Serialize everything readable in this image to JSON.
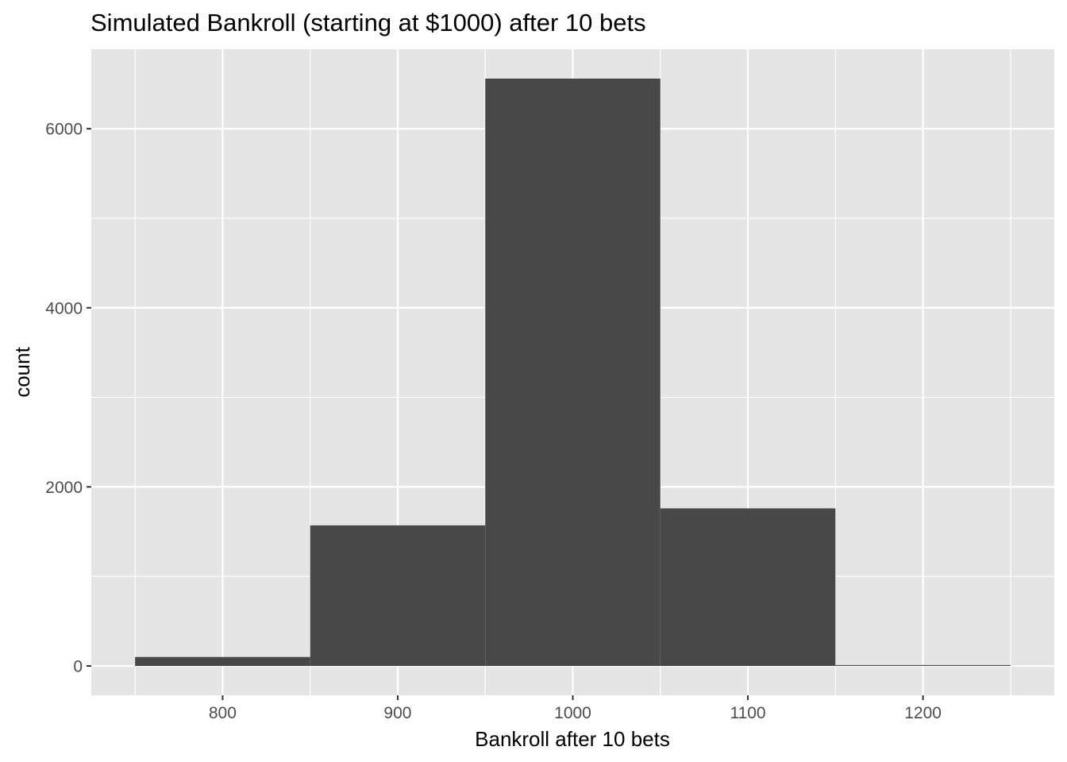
{
  "chart_data": {
    "type": "bar",
    "title": "Simulated Bankroll (starting at $1000) after 10 bets",
    "xlabel": "Bankroll after 10 bets",
    "ylabel": "count",
    "bin_width": 100,
    "bins": [
      {
        "x_min": 750,
        "x_max": 850,
        "count": 100
      },
      {
        "x_min": 850,
        "x_max": 950,
        "count": 1570
      },
      {
        "x_min": 950,
        "x_max": 1050,
        "count": 6560
      },
      {
        "x_min": 1050,
        "x_max": 1150,
        "count": 1760
      },
      {
        "x_min": 1150,
        "x_max": 1250,
        "count": 10
      }
    ],
    "xlim": [
      725,
      1275
    ],
    "ylim": [
      -328,
      6888
    ],
    "x_ticks": [
      800,
      900,
      1000,
      1100,
      1200
    ],
    "x_tick_labels": [
      "800",
      "900",
      "1000",
      "1100",
      "1200"
    ],
    "y_ticks": [
      0,
      2000,
      4000,
      6000
    ],
    "y_tick_labels": [
      "0",
      "2000",
      "4000",
      "6000"
    ],
    "grid": true,
    "legend": "none",
    "colors": {
      "bar_fill": "#484848",
      "panel_background": "#E5E5E5",
      "grid_line": "#FFFFFF",
      "tick_mark": "#333333",
      "tick_text": "#4D4D4D",
      "title_text": "#000000"
    }
  }
}
